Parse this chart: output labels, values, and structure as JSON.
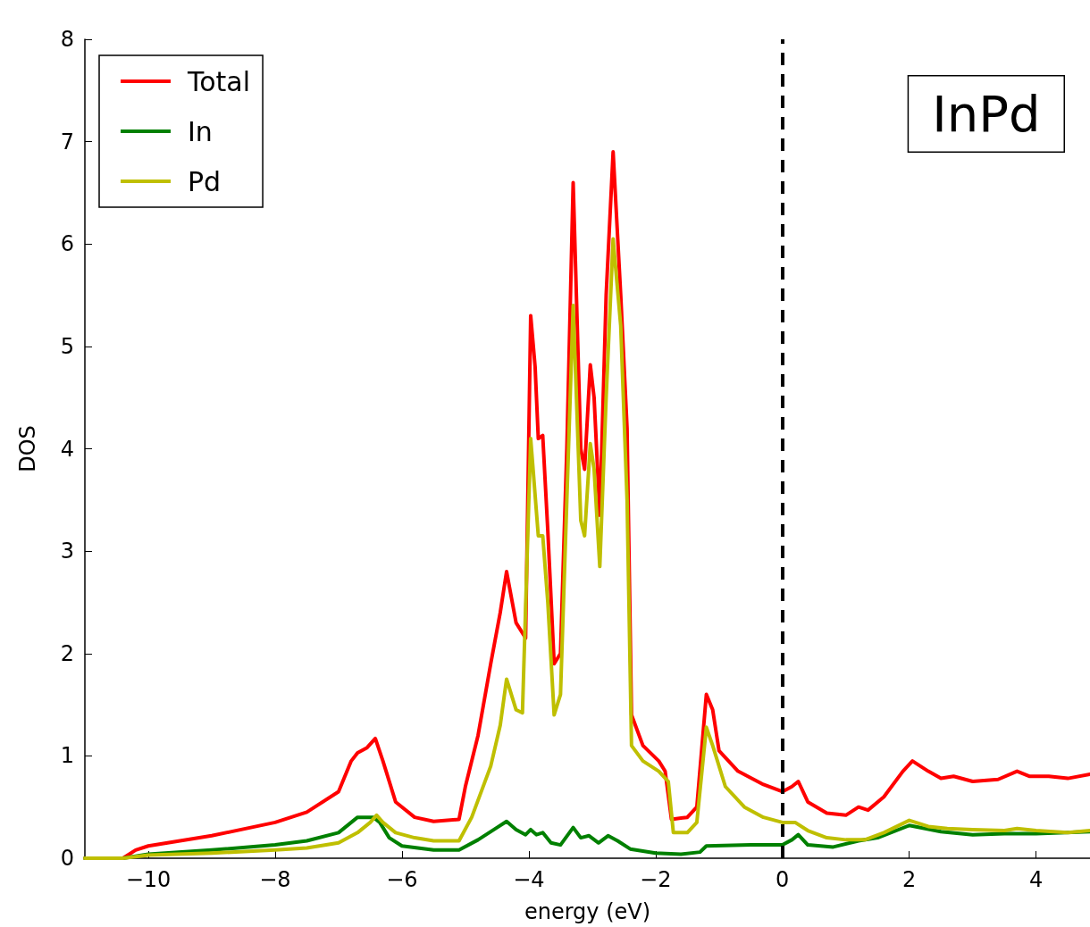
{
  "chart_data": {
    "type": "line",
    "xlabel": "energy (eV)",
    "ylabel": "DOS",
    "annotations": [
      "InPd"
    ],
    "xlim": [
      -11,
      4.85
    ],
    "ylim": [
      0,
      8
    ],
    "xticks": [
      {
        "value": -10,
        "label": "−10"
      },
      {
        "value": -8,
        "label": "−8"
      },
      {
        "value": -6,
        "label": "−6"
      },
      {
        "value": -4,
        "label": "−4"
      },
      {
        "value": -2,
        "label": "−2"
      },
      0,
      2,
      4
    ],
    "yticks": [
      0,
      1,
      2,
      3,
      4,
      5,
      6,
      7,
      8
    ],
    "grid": false,
    "legend": "top left",
    "marker": "none",
    "line_style": "solid",
    "ref_lines": [
      {
        "axis": "x",
        "value": 0,
        "color": "#000000",
        "line_style": "dashed"
      }
    ],
    "series": [
      {
        "name": "Total",
        "color": "#ff0000",
        "x": [
          -11,
          -10.4,
          -10.2,
          -10,
          -9,
          -8,
          -7.5,
          -7,
          -6.8,
          -6.7,
          -6.55,
          -6.42,
          -6.3,
          -6.1,
          -5.8,
          -5.5,
          -5.1,
          -5,
          -4.8,
          -4.6,
          -4.45,
          -4.35,
          -4.2,
          -4.05,
          -3.97,
          -3.9,
          -3.85,
          -3.78,
          -3.7,
          -3.6,
          -3.5,
          -3.4,
          -3.3,
          -3.18,
          -3.12,
          -3.03,
          -2.97,
          -2.88,
          -2.78,
          -2.67,
          -2.55,
          -2.45,
          -2.38,
          -2.2,
          -1.95,
          -1.85,
          -1.75,
          -1.5,
          -1.35,
          -1.2,
          -1.1,
          -1,
          -0.7,
          -0.3,
          0,
          0.15,
          0.25,
          0.4,
          0.7,
          1,
          1.2,
          1.35,
          1.6,
          1.9,
          2.05,
          2.3,
          2.5,
          2.7,
          3,
          3.4,
          3.7,
          3.9,
          4.2,
          4.5,
          4.85
        ],
        "values": [
          0,
          0,
          0.08,
          0.12,
          0.22,
          0.35,
          0.45,
          0.65,
          0.95,
          1.03,
          1.08,
          1.17,
          0.95,
          0.55,
          0.4,
          0.36,
          0.38,
          0.7,
          1.2,
          1.9,
          2.4,
          2.8,
          2.3,
          2.15,
          5.3,
          4.8,
          4.1,
          4.13,
          3.2,
          1.9,
          2,
          4,
          6.6,
          4,
          3.8,
          4.82,
          4.5,
          3.35,
          5.5,
          6.9,
          5.5,
          4.2,
          1.4,
          1.1,
          0.95,
          0.85,
          0.38,
          0.4,
          0.5,
          1.6,
          1.45,
          1.05,
          0.85,
          0.72,
          0.65,
          0.7,
          0.75,
          0.55,
          0.44,
          0.42,
          0.5,
          0.47,
          0.6,
          0.85,
          0.95,
          0.85,
          0.78,
          0.8,
          0.75,
          0.77,
          0.85,
          0.8,
          0.8,
          0.78,
          0.82
        ]
      },
      {
        "name": "In",
        "color": "#008000",
        "x": [
          -11,
          -10.4,
          -10,
          -9,
          -8,
          -7.5,
          -7,
          -6.8,
          -6.7,
          -6.45,
          -6.35,
          -6.2,
          -6,
          -5.5,
          -5.1,
          -4.8,
          -4.5,
          -4.35,
          -4.2,
          -4.05,
          -3.97,
          -3.88,
          -3.78,
          -3.65,
          -3.5,
          -3.3,
          -3.18,
          -3.05,
          -2.9,
          -2.75,
          -2.6,
          -2.4,
          -2,
          -1.6,
          -1.3,
          -1.2,
          -0.5,
          0,
          0.15,
          0.25,
          0.4,
          0.8,
          1.2,
          1.5,
          2,
          2.5,
          3,
          3.5,
          4,
          4.85
        ],
        "values": [
          0,
          0,
          0.04,
          0.08,
          0.13,
          0.17,
          0.25,
          0.35,
          0.4,
          0.4,
          0.35,
          0.2,
          0.12,
          0.08,
          0.08,
          0.18,
          0.3,
          0.36,
          0.28,
          0.23,
          0.28,
          0.23,
          0.25,
          0.15,
          0.13,
          0.3,
          0.2,
          0.22,
          0.15,
          0.22,
          0.17,
          0.09,
          0.05,
          0.04,
          0.06,
          0.12,
          0.13,
          0.13,
          0.18,
          0.23,
          0.13,
          0.11,
          0.17,
          0.2,
          0.32,
          0.26,
          0.23,
          0.24,
          0.24,
          0.26
        ]
      },
      {
        "name": "Pd",
        "color": "#bfbf00",
        "x": [
          -11,
          -10.4,
          -10,
          -9,
          -8,
          -7.5,
          -7,
          -6.7,
          -6.5,
          -6.4,
          -6.3,
          -6.1,
          -5.8,
          -5.5,
          -5.1,
          -4.9,
          -4.6,
          -4.45,
          -4.35,
          -4.2,
          -4.1,
          -3.97,
          -3.85,
          -3.78,
          -3.7,
          -3.6,
          -3.5,
          -3.4,
          -3.3,
          -3.18,
          -3.12,
          -3.03,
          -2.97,
          -2.88,
          -2.78,
          -2.67,
          -2.55,
          -2.45,
          -2.38,
          -2.2,
          -1.95,
          -1.8,
          -1.72,
          -1.5,
          -1.35,
          -1.2,
          -1.1,
          -0.9,
          -0.6,
          -0.3,
          0,
          0.2,
          0.4,
          0.7,
          1,
          1.3,
          1.6,
          2,
          2.3,
          2.6,
          3,
          3.5,
          3.7,
          4,
          4.5,
          4.85
        ],
        "values": [
          0,
          0,
          0.03,
          0.05,
          0.08,
          0.1,
          0.15,
          0.25,
          0.35,
          0.42,
          0.35,
          0.25,
          0.2,
          0.17,
          0.17,
          0.4,
          0.9,
          1.3,
          1.75,
          1.45,
          1.42,
          4.1,
          3.15,
          3.15,
          2.5,
          1.4,
          1.6,
          3.5,
          5.4,
          3.3,
          3.15,
          4.05,
          3.8,
          2.85,
          4.5,
          6.05,
          5.2,
          3.5,
          1.1,
          0.95,
          0.85,
          0.75,
          0.25,
          0.25,
          0.35,
          1.28,
          1.1,
          0.7,
          0.5,
          0.4,
          0.35,
          0.35,
          0.27,
          0.2,
          0.18,
          0.18,
          0.25,
          0.37,
          0.31,
          0.29,
          0.28,
          0.27,
          0.29,
          0.27,
          0.25,
          0.27
        ]
      }
    ]
  }
}
